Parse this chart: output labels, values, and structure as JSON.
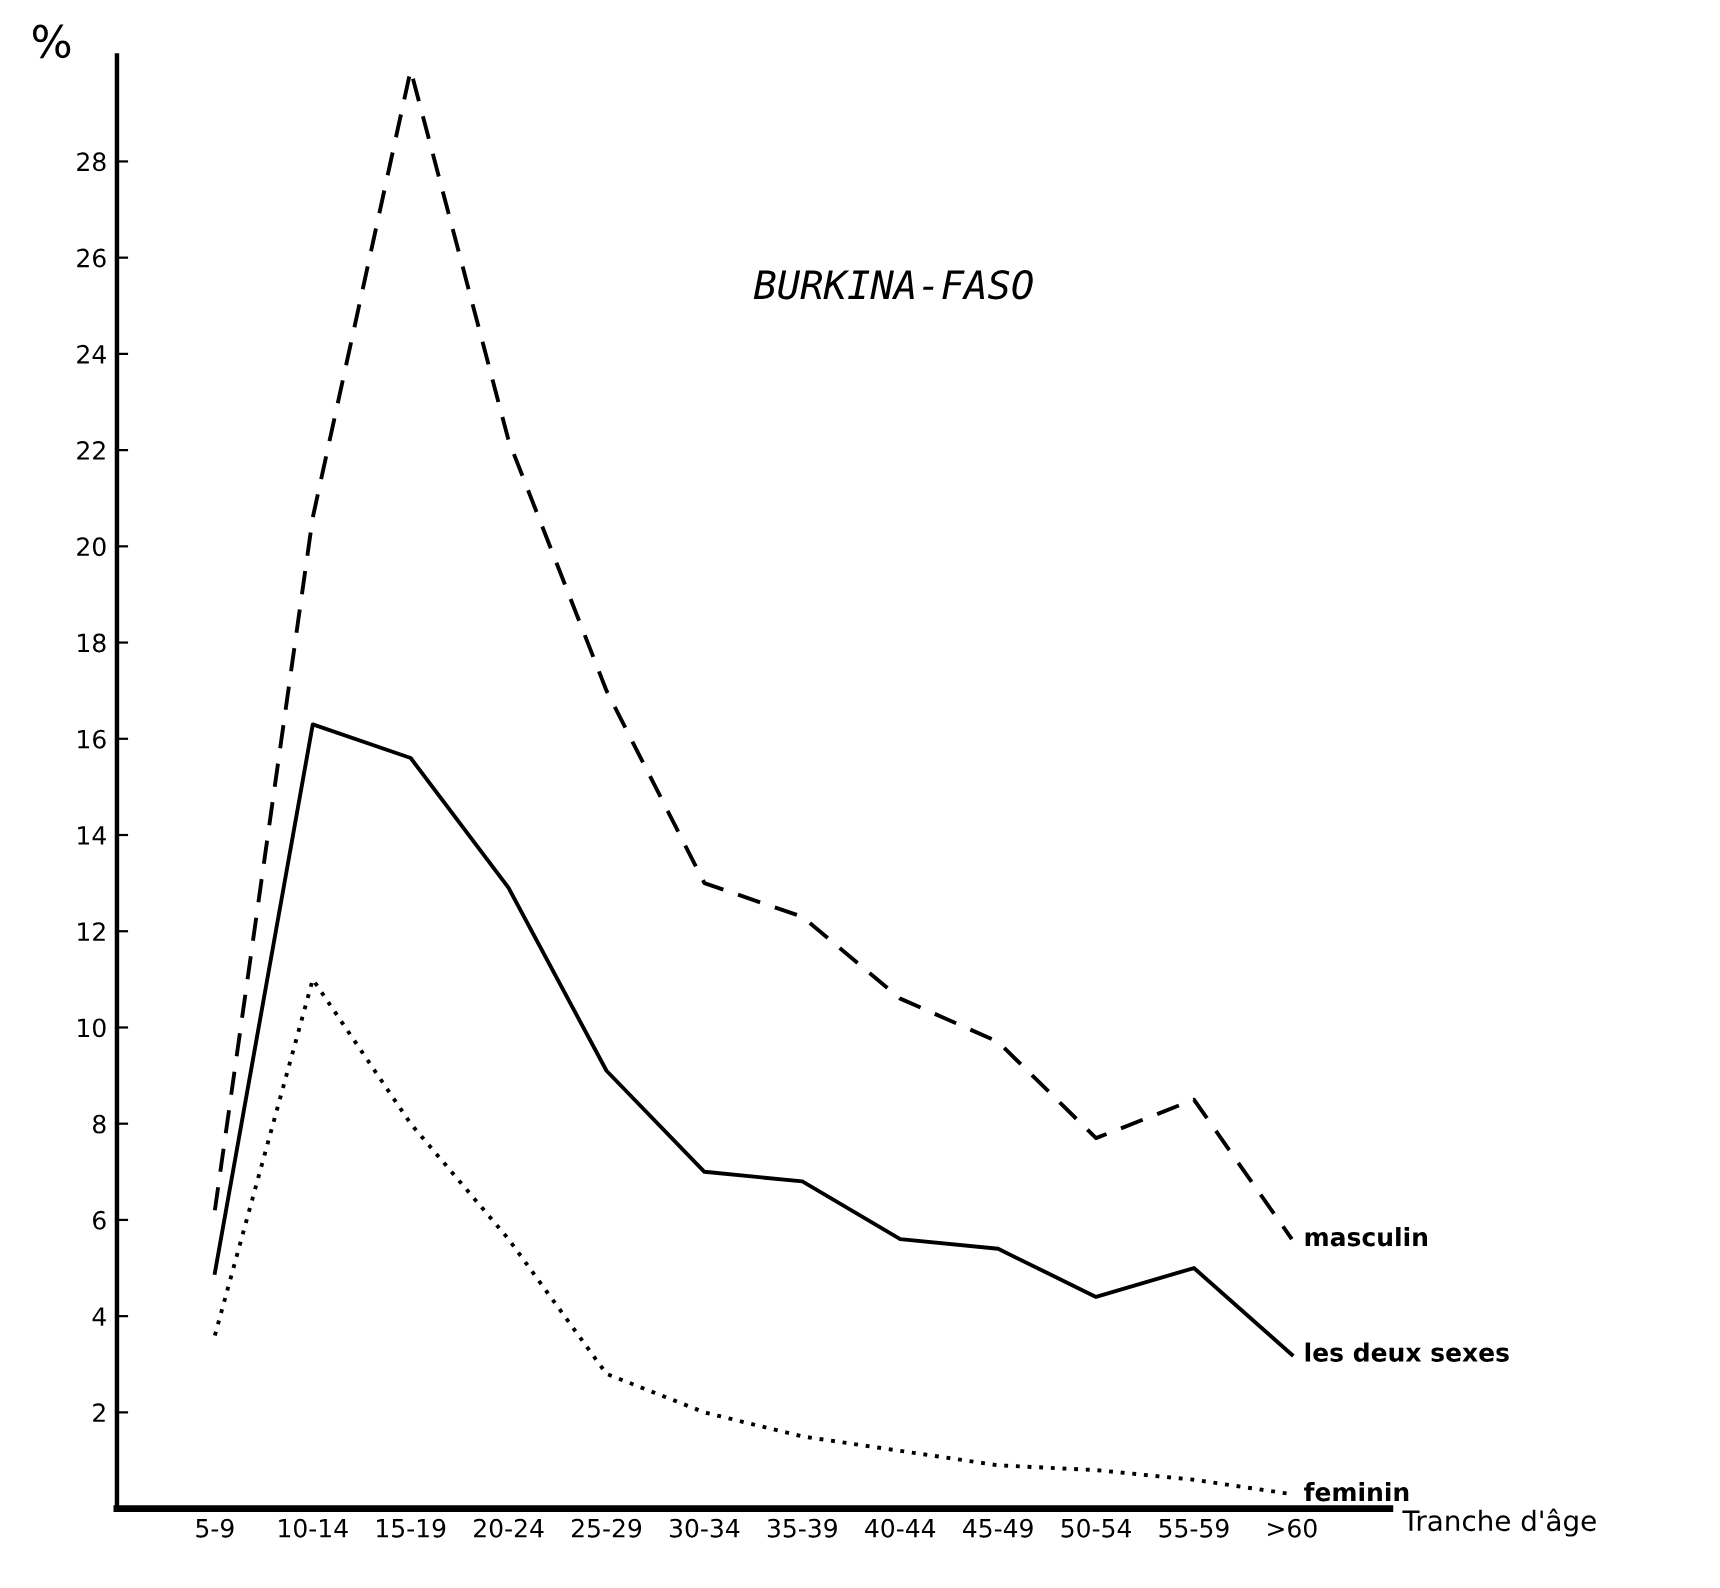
{
  "chart_data": {
    "type": "line",
    "title": "BURKINA-FASO",
    "ylabel": "%",
    "xlabel": "Tranche d'âge",
    "categories": [
      "5-9",
      "10-14",
      "15-19",
      "20-24",
      "25-29",
      "30-34",
      "35-39",
      "40-44",
      "45-49",
      "50-54",
      "55-59",
      ">60"
    ],
    "ylim": [
      0,
      30.2
    ],
    "yticks": [
      2,
      4,
      6,
      8,
      10,
      12,
      14,
      16,
      18,
      20,
      22,
      24,
      26,
      28
    ],
    "grid": false,
    "legend": false,
    "series": [
      {
        "name": "masculin",
        "color": "#000000",
        "line_style": "dashed",
        "values": [
          6.2,
          20.6,
          29.9,
          22.2,
          17.0,
          13.0,
          12.3,
          10.6,
          9.7,
          7.7,
          8.5,
          5.6
        ]
      },
      {
        "name": "les deux sexes",
        "color": "#000000",
        "line_style": "solid",
        "values": [
          4.9,
          16.3,
          15.6,
          12.9,
          9.1,
          7.0,
          6.8,
          5.6,
          5.4,
          4.4,
          5.0,
          3.2
        ]
      },
      {
        "name": "feminin",
        "color": "#000000",
        "line_style": "dotted",
        "values": [
          3.6,
          11.0,
          8.0,
          5.6,
          2.8,
          2.0,
          1.5,
          1.2,
          0.9,
          0.8,
          0.6,
          0.3
        ]
      }
    ]
  }
}
